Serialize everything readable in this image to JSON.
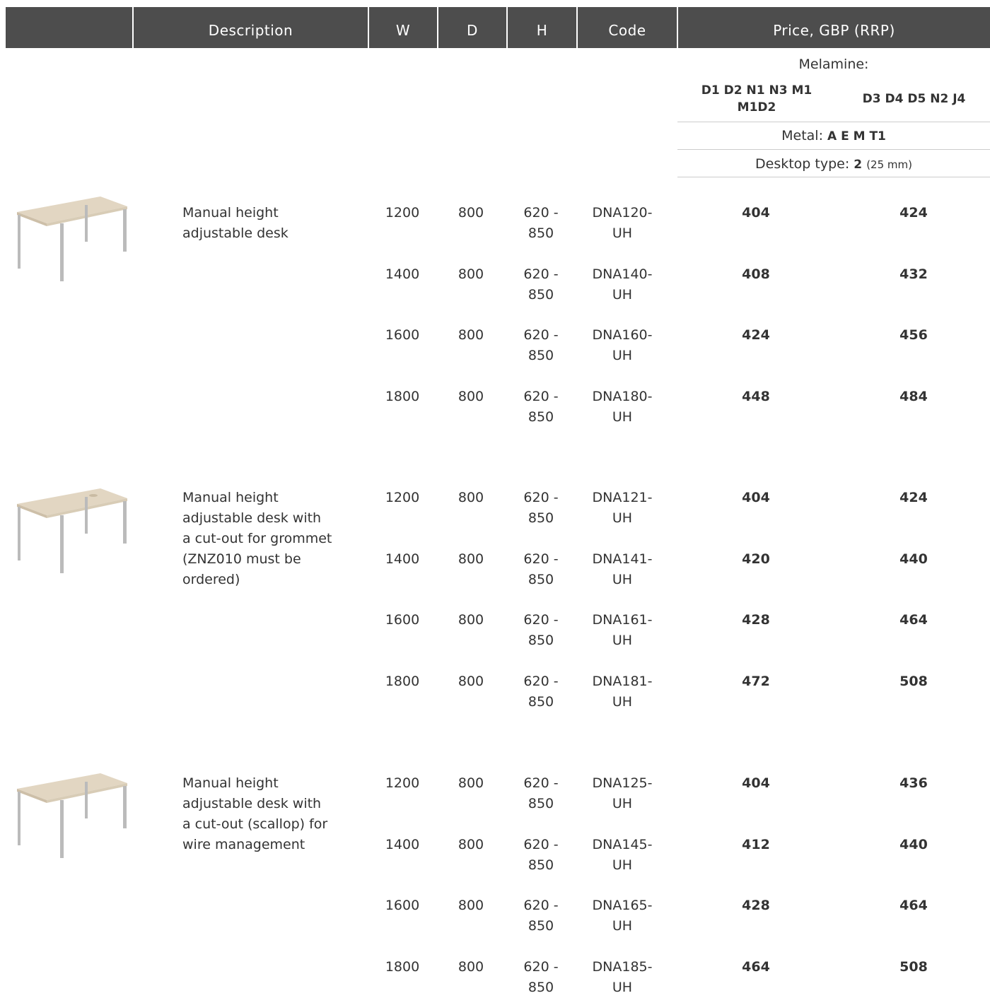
{
  "header": {
    "columns": [
      "Description",
      "W",
      "D",
      "H",
      "Code",
      "Price, GBP (RRP)"
    ]
  },
  "subheader": {
    "melamine_label": "Melamine:",
    "finish_groups": [
      "D1 D2 N1 N3 M1 M1D2",
      "D3 D4 D5 N2 J4"
    ],
    "metal_label": "Metal:",
    "metal_codes": "A E M T1",
    "desktop_label": "Desktop type:",
    "desktop_type": "2",
    "desktop_thickness": "(25 mm)"
  },
  "groups": [
    {
      "description_lines": [
        "Manual height",
        "adjustable desk"
      ],
      "rows": [
        {
          "w": 1200,
          "d": 800,
          "h": "620 - 850",
          "code": "DNA120-UH",
          "price_1": 404,
          "price_2": 424
        },
        {
          "w": 1400,
          "d": 800,
          "h": "620 - 850",
          "code": "DNA140-UH",
          "price_1": 408,
          "price_2": 432
        },
        {
          "w": 1600,
          "d": 800,
          "h": "620 - 850",
          "code": "DNA160-UH",
          "price_1": 424,
          "price_2": 456
        },
        {
          "w": 1800,
          "d": 800,
          "h": "620 - 850",
          "code": "DNA180-UH",
          "price_1": 448,
          "price_2": 484
        }
      ]
    },
    {
      "description_lines": [
        "Manual height",
        "adjustable desk with",
        "a cut-out for grommet",
        "(ZNZ010 must be",
        "ordered)"
      ],
      "rows": [
        {
          "w": 1200,
          "d": 800,
          "h": "620 - 850",
          "code": "DNA121-UH",
          "price_1": 404,
          "price_2": 424
        },
        {
          "w": 1400,
          "d": 800,
          "h": "620 - 850",
          "code": "DNA141-UH",
          "price_1": 420,
          "price_2": 440
        },
        {
          "w": 1600,
          "d": 800,
          "h": "620 - 850",
          "code": "DNA161-UH",
          "price_1": 428,
          "price_2": 464
        },
        {
          "w": 1800,
          "d": 800,
          "h": "620 - 850",
          "code": "DNA181-UH",
          "price_1": 472,
          "price_2": 508
        }
      ]
    },
    {
      "description_lines": [
        "Manual height",
        "adjustable desk with",
        "a cut-out (scallop) for",
        "wire management"
      ],
      "rows": [
        {
          "w": 1200,
          "d": 800,
          "h": "620 - 850",
          "code": "DNA125-UH",
          "price_1": 404,
          "price_2": 436
        },
        {
          "w": 1400,
          "d": 800,
          "h": "620 - 850",
          "code": "DNA145-UH",
          "price_1": 412,
          "price_2": 440
        },
        {
          "w": 1600,
          "d": 800,
          "h": "620 - 850",
          "code": "DNA165-UH",
          "price_1": 428,
          "price_2": 464
        },
        {
          "w": 1800,
          "d": 800,
          "h": "620 - 850",
          "code": "DNA185-UH",
          "price_1": 464,
          "price_2": 508
        }
      ]
    }
  ]
}
